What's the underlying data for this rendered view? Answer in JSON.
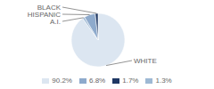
{
  "chart_data": {
    "type": "pie",
    "categories": [
      "WHITE",
      "A.I.",
      "HISPANIC",
      "BLACK"
    ],
    "values": [
      90.2,
      1.3,
      6.8,
      1.7
    ],
    "colors": [
      "#dce6f1",
      "#9eb9d4",
      "#8eaacc",
      "#1f3864"
    ],
    "legend": "bottom",
    "legend_items": [
      {
        "label": "90.2%",
        "value": 90.2,
        "color": "#dce6f1"
      },
      {
        "label": "6.8%",
        "value": 6.8,
        "color": "#8eaacc"
      },
      {
        "label": "1.7%",
        "value": 1.7,
        "color": "#1f3864"
      },
      {
        "label": "1.3%",
        "value": 1.3,
        "color": "#9eb9d4"
      }
    ]
  }
}
